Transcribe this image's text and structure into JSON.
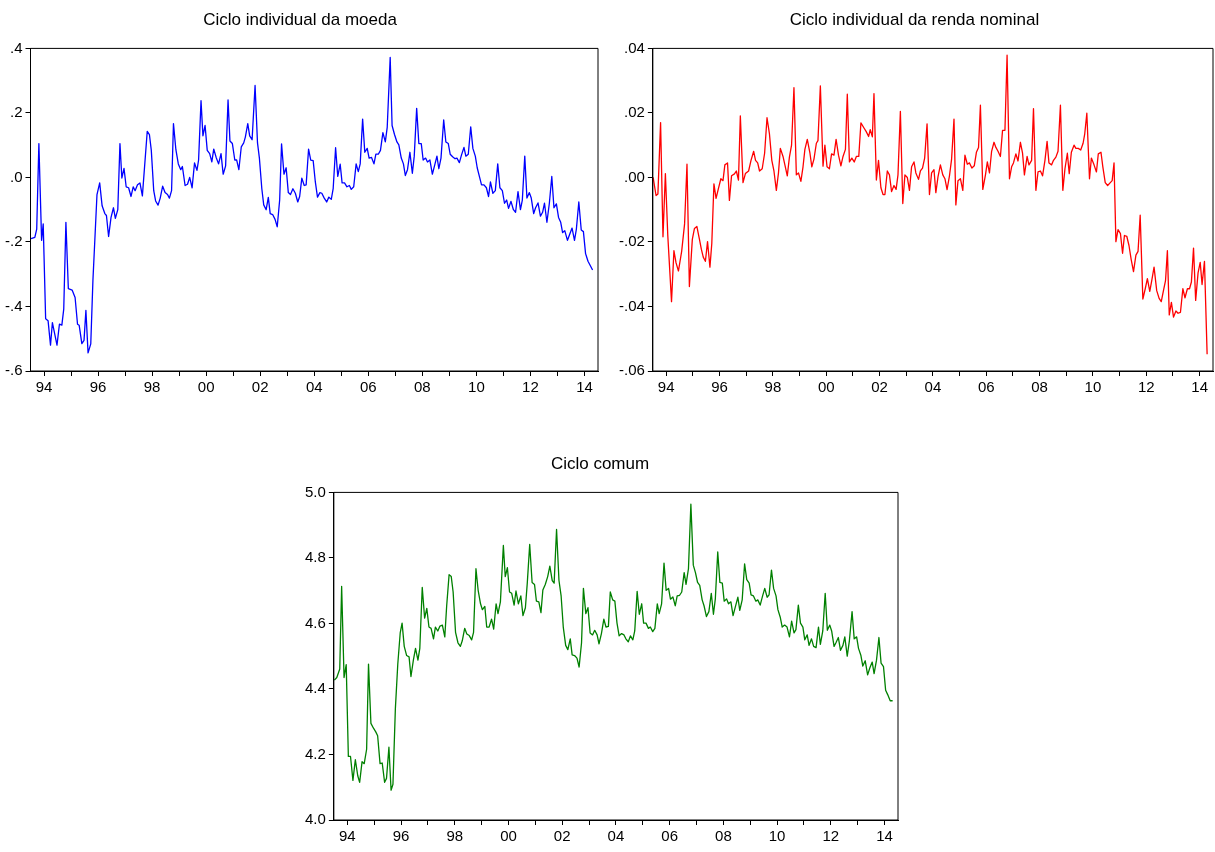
{
  "chart_data": [
    {
      "type": "line",
      "title": "Ciclo individual da moeda",
      "x": [
        1993.52,
        1993.66,
        1993.73,
        1993.81,
        1993.91,
        1993.97,
        1994.06,
        1994.15,
        1994.24,
        1994.31,
        1994.48,
        1994.57,
        1994.66,
        1994.73,
        1994.81,
        1994.9,
        1995.04,
        1995.15,
        1995.24,
        1995.3,
        1995.4,
        1995.48,
        1995.55,
        1995.63,
        1995.73,
        1995.81,
        1995.96,
        1996.06,
        1996.15,
        1996.25,
        1996.31,
        1996.39,
        1996.48,
        1996.57,
        1996.64,
        1996.73,
        1996.81,
        1996.88,
        1996.96,
        1997.04,
        1997.13,
        1997.22,
        1997.3,
        1997.37,
        1997.46,
        1997.55,
        1997.64,
        1997.82,
        1997.9,
        1997.97,
        1998.06,
        1998.13,
        1998.22,
        1998.3,
        1998.39,
        1998.48,
        1998.57,
        1998.64,
        1998.72,
        1998.79,
        1998.88,
        1998.97,
        1999.06,
        1999.12,
        1999.22,
        1999.31,
        1999.39,
        1999.48,
        1999.57,
        1999.66,
        1999.72,
        1999.81,
        1999.88,
        1999.96,
        2000.04,
        2000.13,
        2000.21,
        2000.28,
        2000.37,
        2000.46,
        2000.55,
        2000.63,
        2000.72,
        2000.81,
        2000.88,
        2000.97,
        2001.06,
        2001.13,
        2001.21,
        2001.3,
        2001.39,
        2001.45,
        2001.54,
        2001.61,
        2001.7,
        2001.81,
        2001.9,
        2001.97,
        2002.06,
        2002.13,
        2002.22,
        2002.3,
        2002.37,
        2002.46,
        2002.55,
        2002.63,
        2002.72,
        2002.79,
        2002.88,
        2002.96,
        2003.04,
        2003.12,
        2003.21,
        2003.3,
        2003.39,
        2003.46,
        2003.54,
        2003.63,
        2003.7,
        2003.79,
        2003.87,
        2003.96,
        2004.04,
        2004.12,
        2004.21,
        2004.28,
        2004.37,
        2004.46,
        2004.54,
        2004.63,
        2004.7,
        2004.79,
        2004.87,
        2004.96,
        2005.03,
        2005.12,
        2005.21,
        2005.3,
        2005.37,
        2005.46,
        2005.55,
        2005.63,
        2005.7,
        2005.79,
        2005.87,
        2005.96,
        2006.03,
        2006.12,
        2006.21,
        2006.28,
        2006.37,
        2006.45,
        2006.54,
        2006.63,
        2006.7,
        2006.81,
        2006.88,
        2006.97,
        2007.06,
        2007.13,
        2007.22,
        2007.3,
        2007.37,
        2007.45,
        2007.54,
        2007.63,
        2007.7,
        2007.79,
        2007.87,
        2007.96,
        2008.03,
        2008.12,
        2008.19,
        2008.28,
        2008.37,
        2008.45,
        2008.54,
        2008.61,
        2008.69,
        2008.79,
        2008.87,
        2008.96,
        2009.03,
        2009.12,
        2009.21,
        2009.28,
        2009.37,
        2009.45,
        2009.54,
        2009.61,
        2009.7,
        2009.79,
        2009.87,
        2009.96,
        2010.03,
        2010.12,
        2010.19,
        2010.28,
        2010.37,
        2010.45,
        2010.52,
        2010.61,
        2010.7,
        2010.79,
        2010.87,
        2010.96,
        2011.04,
        2011.12,
        2011.19,
        2011.28,
        2011.37,
        2011.45,
        2011.54,
        2011.63,
        2011.7,
        2011.79,
        2011.87,
        2011.96,
        2012.03,
        2012.12,
        2012.19,
        2012.28,
        2012.37,
        2012.45,
        2012.52,
        2012.61,
        2012.7,
        2012.79,
        2012.87,
        2012.96,
        2013.04,
        2013.12,
        2013.19,
        2013.27,
        2013.37,
        2013.45,
        2013.54,
        2013.63,
        2013.7,
        2013.79,
        2013.88,
        2013.96,
        2014.04,
        2014.13,
        2014.3
      ],
      "series": [
        {
          "color": "#0000ff",
          "values": [
            -0.19,
            -0.186,
            -0.16,
            0.105,
            -0.195,
            -0.144,
            -0.438,
            -0.444,
            -0.52,
            -0.45,
            -0.52,
            -0.455,
            -0.458,
            -0.408,
            -0.139,
            -0.345,
            -0.349,
            -0.372,
            -0.455,
            -0.458,
            -0.515,
            -0.505,
            -0.412,
            -0.544,
            -0.516,
            -0.319,
            -0.053,
            -0.017,
            -0.088,
            -0.112,
            -0.118,
            -0.183,
            -0.124,
            -0.094,
            -0.127,
            -0.1,
            0.105,
            -0.002,
            0.028,
            -0.029,
            -0.032,
            -0.059,
            -0.029,
            -0.041,
            -0.023,
            -0.017,
            -0.057,
            0.143,
            0.133,
            0.084,
            -0.041,
            -0.073,
            -0.086,
            -0.064,
            -0.027,
            -0.047,
            -0.053,
            -0.064,
            -0.041,
            0.167,
            0.086,
            0.042,
            0.024,
            0.034,
            -0.025,
            -0.021,
            0.0,
            -0.032,
            0.045,
            0.022,
            0.054,
            0.238,
            0.129,
            0.161,
            0.084,
            0.074,
            0.048,
            0.088,
            0.062,
            0.042,
            0.074,
            0.01,
            0.036,
            0.24,
            0.113,
            0.105,
            0.054,
            0.054,
            0.024,
            0.095,
            0.107,
            0.125,
            0.167,
            0.129,
            0.117,
            0.285,
            0.107,
            0.06,
            -0.035,
            -0.085,
            -0.1,
            -0.062,
            -0.112,
            -0.115,
            -0.13,
            -0.153,
            -0.07,
            0.104,
            0.01,
            0.03,
            -0.047,
            -0.053,
            -0.035,
            -0.049,
            -0.076,
            -0.059,
            -0.002,
            -0.025,
            -0.023,
            0.088,
            0.054,
            0.052,
            -0.014,
            -0.061,
            -0.047,
            -0.049,
            -0.064,
            -0.076,
            -0.061,
            -0.068,
            -0.035,
            0.092,
            0.003,
            0.041,
            -0.017,
            -0.017,
            -0.029,
            -0.025,
            -0.037,
            -0.029,
            0.042,
            0.018,
            0.042,
            0.181,
            0.078,
            0.09,
            0.06,
            0.062,
            0.042,
            0.072,
            0.072,
            0.084,
            0.139,
            0.11,
            0.155,
            0.372,
            0.161,
            0.133,
            0.11,
            0.101,
            0.06,
            0.042,
            0.006,
            0.024,
            0.078,
            0.013,
            0.066,
            0.214,
            0.105,
            0.105,
            0.054,
            0.06,
            0.048,
            0.054,
            0.01,
            0.036,
            0.066,
            0.027,
            0.06,
            0.178,
            0.11,
            0.105,
            0.072,
            0.064,
            0.058,
            0.06,
            0.046,
            0.07,
            0.093,
            0.066,
            0.072,
            0.157,
            0.09,
            0.066,
            0.03,
            0.0,
            -0.023,
            -0.023,
            -0.032,
            -0.059,
            -0.014,
            -0.049,
            -0.041,
            0.042,
            -0.032,
            -0.041,
            -0.08,
            -0.07,
            -0.096,
            -0.074,
            -0.1,
            -0.108,
            -0.044,
            -0.1,
            -0.07,
            0.066,
            -0.064,
            -0.047,
            -0.064,
            -0.112,
            -0.094,
            -0.079,
            -0.12,
            -0.108,
            -0.08,
            -0.139,
            -0.08,
            0.003,
            -0.094,
            -0.082,
            -0.124,
            -0.139,
            -0.171,
            -0.165,
            -0.195,
            -0.177,
            -0.157,
            -0.195,
            -0.16,
            -0.076,
            -0.163,
            -0.168,
            -0.236,
            -0.26,
            -0.287
          ]
        }
      ],
      "xlim": [
        1993.5,
        2014.5
      ],
      "xticks": [
        {
          "value": 1994,
          "label": "94"
        },
        {
          "value": 1995,
          "label": null
        },
        {
          "value": 1996,
          "label": "96"
        },
        {
          "value": 1997,
          "label": null
        },
        {
          "value": 1998,
          "label": "98"
        },
        {
          "value": 1999,
          "label": null
        },
        {
          "value": 2000,
          "label": "00"
        },
        {
          "value": 2001,
          "label": null
        },
        {
          "value": 2002,
          "label": "02"
        },
        {
          "value": 2003,
          "label": null
        },
        {
          "value": 2004,
          "label": "04"
        },
        {
          "value": 2005,
          "label": null
        },
        {
          "value": 2006,
          "label": "06"
        },
        {
          "value": 2007,
          "label": null
        },
        {
          "value": 2008,
          "label": "08"
        },
        {
          "value": 2009,
          "label": null
        },
        {
          "value": 2010,
          "label": "10"
        },
        {
          "value": 2011,
          "label": null
        },
        {
          "value": 2012,
          "label": "12"
        },
        {
          "value": 2013,
          "label": null
        },
        {
          "value": 2014,
          "label": "14"
        }
      ],
      "ylim": [
        -0.6,
        0.4
      ],
      "yticks": [
        {
          "value": -0.6,
          "label": "-.6"
        },
        {
          "value": -0.4,
          "label": "-.4"
        },
        {
          "value": -0.2,
          "label": "-.2"
        },
        {
          "value": 0,
          "label": ".0"
        },
        {
          "value": 0.2,
          "label": ".2"
        },
        {
          "value": 0.4,
          "label": ".4"
        }
      ]
    },
    {
      "type": "line",
      "title": "Ciclo individual da renda nominal",
      "x": [
        1993.51,
        1993.62,
        1993.69,
        1993.79,
        1993.88,
        1993.97,
        1994.06,
        1994.2,
        1994.29,
        1994.37,
        1994.46,
        1994.58,
        1994.69,
        1994.78,
        1994.87,
        1994.98,
        1995.06,
        1995.15,
        1995.24,
        1995.32,
        1995.39,
        1995.47,
        1995.55,
        1995.64,
        1995.71,
        1995.79,
        1995.87,
        1995.96,
        1996.05,
        1996.13,
        1996.2,
        1996.3,
        1996.37,
        1996.45,
        1996.56,
        1996.63,
        1996.71,
        1996.78,
        1996.88,
        1996.97,
        1997.09,
        1997.18,
        1997.28,
        1997.35,
        1997.43,
        1997.5,
        1997.6,
        1997.69,
        1997.78,
        1997.87,
        1997.96,
        1998.04,
        1998.13,
        1998.21,
        1998.28,
        1998.38,
        1998.45,
        1998.54,
        1998.62,
        1998.7,
        1998.79,
        1998.88,
        1998.96,
        1999.05,
        1999.13,
        1999.2,
        1999.29,
        1999.39,
        1999.46,
        1999.54,
        1999.63,
        1999.69,
        1999.78,
        1999.88,
        1999.95,
        2000.03,
        2000.12,
        2000.2,
        2000.29,
        2000.37,
        2000.46,
        2000.55,
        2000.63,
        2000.72,
        2000.79,
        2000.87,
        2000.96,
        2001.05,
        2001.13,
        2001.22,
        2001.3,
        2001.41,
        2001.5,
        2001.59,
        2001.65,
        2001.73,
        2001.79,
        2001.88,
        2001.96,
        2002.05,
        2002.13,
        2002.2,
        2002.29,
        2002.37,
        2002.45,
        2002.54,
        2002.62,
        2002.69,
        2002.78,
        2002.87,
        2002.95,
        2003.04,
        2003.12,
        2003.2,
        2003.29,
        2003.36,
        2003.46,
        2003.53,
        2003.61,
        2003.69,
        2003.78,
        2003.87,
        2003.95,
        2004.04,
        2004.11,
        2004.19,
        2004.28,
        2004.37,
        2004.45,
        2004.53,
        2004.62,
        2004.7,
        2004.79,
        2004.86,
        2004.94,
        2005.03,
        2005.12,
        2005.2,
        2005.29,
        2005.37,
        2005.46,
        2005.55,
        2005.63,
        2005.71,
        2005.78,
        2005.87,
        2005.97,
        2006.04,
        2006.12,
        2006.2,
        2006.29,
        2006.36,
        2006.44,
        2006.53,
        2006.61,
        2006.7,
        2006.78,
        2006.87,
        2006.95,
        2007.02,
        2007.11,
        2007.19,
        2007.28,
        2007.36,
        2007.43,
        2007.53,
        2007.6,
        2007.7,
        2007.77,
        2007.86,
        2007.94,
        2008.03,
        2008.11,
        2008.2,
        2008.28,
        2008.35,
        2008.45,
        2008.52,
        2008.61,
        2008.69,
        2008.78,
        2008.87,
        2008.95,
        2009.04,
        2009.11,
        2009.19,
        2009.29,
        2009.36,
        2009.45,
        2009.54,
        2009.63,
        2009.69,
        2009.77,
        2009.87,
        2009.94,
        2010.04,
        2010.13,
        2010.2,
        2010.3,
        2010.37,
        2010.46,
        2010.55,
        2010.65,
        2010.72,
        2010.79,
        2010.86,
        2010.94,
        2011.03,
        2011.11,
        2011.18,
        2011.27,
        2011.35,
        2011.43,
        2011.52,
        2011.61,
        2011.69,
        2011.77,
        2011.87,
        2011.96,
        2012.04,
        2012.13,
        2012.21,
        2012.29,
        2012.39,
        2012.48,
        2012.56,
        2012.65,
        2012.72,
        2012.79,
        2012.86,
        2012.94,
        2013.02,
        2013.11,
        2013.19,
        2013.28,
        2013.37,
        2013.45,
        2013.54,
        2013.62,
        2013.69,
        2013.77,
        2013.85,
        2013.94,
        2014.02,
        2014.09,
        2014.18,
        2014.28
      ],
      "series": [
        {
          "color": "#ff0000",
          "values": [
            0.0,
            -0.0056,
            -0.0051,
            0.017,
            -0.0184,
            0.0012,
            -0.018,
            -0.0385,
            -0.0227,
            -0.0265,
            -0.029,
            -0.0229,
            -0.0144,
            0.0041,
            -0.0338,
            -0.0192,
            -0.0158,
            -0.0152,
            -0.0189,
            -0.0223,
            -0.0247,
            -0.026,
            -0.0199,
            -0.0278,
            -0.0205,
            -0.002,
            -0.0065,
            -0.0034,
            -0.0004,
            -0.001,
            0.0039,
            0.0045,
            -0.0071,
            0.0005,
            0.0011,
            0.002,
            -0.0008,
            0.0191,
            -0.0016,
            0.0012,
            0.002,
            0.0053,
            0.0081,
            0.0053,
            0.0045,
            0.002,
            0.0027,
            0.0075,
            0.0185,
            0.0136,
            0.0053,
            0.002,
            -0.004,
            0.0014,
            0.009,
            0.0065,
            0.0039,
            0.0005,
            0.0063,
            0.01,
            0.0278,
            0.0008,
            0.0014,
            -0.0012,
            0.0033,
            0.0087,
            0.0118,
            0.0075,
            0.0033,
            0.0057,
            0.0106,
            0.0114,
            0.0284,
            0.0035,
            0.01,
            0.0033,
            0.0027,
            0.0073,
            0.0069,
            0.0118,
            0.0069,
            0.0036,
            0.0065,
            0.0087,
            0.0258,
            0.0048,
            0.006,
            0.0048,
            0.0065,
            0.0065,
            0.0169,
            0.0154,
            0.0142,
            0.0127,
            0.0148,
            0.0126,
            0.026,
            -0.0008,
            0.0053,
            -0.0032,
            -0.0053,
            -0.0053,
            0.002,
            0.0008,
            -0.0044,
            -0.0025,
            -0.0037,
            0.0008,
            0.0205,
            -0.0081,
            0.0008,
            0.0,
            -0.004,
            0.0033,
            0.0048,
            0.0014,
            -0.0006,
            0.002,
            0.0029,
            0.006,
            0.0166,
            -0.0053,
            0.0014,
            0.0024,
            -0.0047,
            0.0002,
            0.0039,
            0.0008,
            -0.0004,
            -0.0038,
            0.0005,
            0.0057,
            0.0181,
            -0.0085,
            -0.001,
            -0.0004,
            -0.004,
            0.0069,
            0.0041,
            0.0045,
            0.0029,
            0.0036,
            0.0078,
            0.0093,
            0.0224,
            -0.0037,
            0.0008,
            0.0048,
            0.0014,
            0.0081,
            0.0109,
            0.0093,
            0.0081,
            0.0065,
            0.0146,
            0.0146,
            0.0379,
            -0.0004,
            0.0033,
            0.0045,
            0.0073,
            0.0051,
            0.0109,
            0.0075,
            0.0008,
            0.0065,
            0.0039,
            0.0053,
            0.0213,
            -0.004,
            0.0017,
            0.002,
            0.0005,
            0.0053,
            0.0112,
            0.0045,
            0.0039,
            0.0053,
            0.0063,
            0.0081,
            0.0224,
            -0.004,
            0.0027,
            0.0075,
            0.0012,
            0.0078,
            0.01,
            0.009,
            0.009,
            0.0085,
            0.0106,
            0.0134,
            0.0199,
            -0.0004,
            0.006,
            0.0039,
            0.0017,
            0.0073,
            0.0078,
            0.0033,
            -0.0016,
            -0.0025,
            -0.0016,
            -0.001,
            0.0045,
            -0.0199,
            -0.0162,
            -0.0174,
            -0.0235,
            -0.018,
            -0.0183,
            -0.0211,
            -0.0253,
            -0.0292,
            -0.0241,
            -0.0229,
            -0.0117,
            -0.0377,
            -0.0345,
            -0.0314,
            -0.0353,
            -0.0317,
            -0.0278,
            -0.0351,
            -0.0375,
            -0.0385,
            -0.0348,
            -0.032,
            -0.0227,
            -0.0426,
            -0.0387,
            -0.0433,
            -0.0414,
            -0.0421,
            -0.0418,
            -0.0345,
            -0.0373,
            -0.0345,
            -0.0345,
            -0.0324,
            -0.0219,
            -0.0381,
            -0.0296,
            -0.0263,
            -0.0332,
            -0.026,
            -0.0548
          ]
        }
      ],
      "xlim": [
        1993.5,
        2014.5
      ],
      "xticks": [
        {
          "value": 1994,
          "label": "94"
        },
        {
          "value": 1995,
          "label": null
        },
        {
          "value": 1996,
          "label": "96"
        },
        {
          "value": 1997,
          "label": null
        },
        {
          "value": 1998,
          "label": "98"
        },
        {
          "value": 1999,
          "label": null
        },
        {
          "value": 2000,
          "label": "00"
        },
        {
          "value": 2001,
          "label": null
        },
        {
          "value": 2002,
          "label": "02"
        },
        {
          "value": 2003,
          "label": null
        },
        {
          "value": 2004,
          "label": "04"
        },
        {
          "value": 2005,
          "label": null
        },
        {
          "value": 2006,
          "label": "06"
        },
        {
          "value": 2007,
          "label": null
        },
        {
          "value": 2008,
          "label": "08"
        },
        {
          "value": 2009,
          "label": null
        },
        {
          "value": 2010,
          "label": "10"
        },
        {
          "value": 2011,
          "label": null
        },
        {
          "value": 2012,
          "label": "12"
        },
        {
          "value": 2013,
          "label": null
        },
        {
          "value": 2014,
          "label": "14"
        }
      ],
      "ylim": [
        -0.06,
        0.04
      ],
      "yticks": [
        {
          "value": -0.06,
          "label": "-.06"
        },
        {
          "value": -0.04,
          "label": "-.04"
        },
        {
          "value": -0.02,
          "label": "-.02"
        },
        {
          "value": 0,
          "label": ".00"
        },
        {
          "value": 0.02,
          "label": ".02"
        },
        {
          "value": 0.04,
          "label": ".04"
        }
      ]
    },
    {
      "type": "line",
      "title": "Ciclo comum",
      "x": [
        1993.52,
        1993.61,
        1993.72,
        1993.79,
        1993.88,
        1993.96,
        1994.04,
        1994.12,
        1994.21,
        1994.3,
        1994.39,
        1994.46,
        1994.55,
        1994.63,
        1994.72,
        1994.79,
        1994.88,
        1994.97,
        1995.06,
        1995.13,
        1995.22,
        1995.3,
        1995.39,
        1995.46,
        1995.55,
        1995.63,
        1995.7,
        1995.79,
        1995.88,
        1995.97,
        1996.04,
        1996.12,
        1996.21,
        1996.3,
        1996.37,
        1996.46,
        1996.54,
        1996.63,
        1996.7,
        1996.79,
        1996.88,
        1996.96,
        1997.04,
        1997.12,
        1997.21,
        1997.28,
        1997.37,
        1997.45,
        1997.54,
        1997.63,
        1997.7,
        1997.79,
        1997.87,
        1997.94,
        1998.03,
        1998.12,
        1998.21,
        1998.28,
        1998.37,
        1998.45,
        1998.54,
        1998.63,
        1998.7,
        1998.79,
        1998.87,
        1998.96,
        1999.03,
        1999.12,
        1999.19,
        1999.28,
        1999.37,
        1999.45,
        1999.54,
        1999.61,
        1999.7,
        1999.81,
        1999.88,
        1999.96,
        2000.04,
        2000.12,
        2000.21,
        2000.28,
        2000.37,
        2000.46,
        2000.54,
        2000.63,
        2000.7,
        2000.79,
        2000.88,
        2000.97,
        2001.04,
        2001.13,
        2001.21,
        2001.28,
        2001.37,
        2001.46,
        2001.54,
        2001.63,
        2001.7,
        2001.79,
        2001.88,
        2001.96,
        2002.04,
        2002.13,
        2002.21,
        2002.3,
        2002.37,
        2002.46,
        2002.55,
        2002.63,
        2002.72,
        2002.79,
        2002.88,
        2002.96,
        2003.04,
        2003.13,
        2003.21,
        2003.3,
        2003.37,
        2003.46,
        2003.55,
        2003.63,
        2003.72,
        2003.79,
        2003.88,
        2003.96,
        2004.04,
        2004.12,
        2004.21,
        2004.3,
        2004.37,
        2004.46,
        2004.54,
        2004.63,
        2004.7,
        2004.79,
        2004.87,
        2004.96,
        2005.03,
        2005.12,
        2005.21,
        2005.28,
        2005.37,
        2005.45,
        2005.54,
        2005.61,
        2005.7,
        2005.79,
        2005.87,
        2005.96,
        2006.03,
        2006.12,
        2006.21,
        2006.28,
        2006.37,
        2006.45,
        2006.54,
        2006.61,
        2006.7,
        2006.79,
        2006.88,
        2006.96,
        2007.04,
        2007.12,
        2007.21,
        2007.28,
        2007.37,
        2007.46,
        2007.55,
        2007.63,
        2007.7,
        2007.79,
        2007.87,
        2007.96,
        2008.03,
        2008.12,
        2008.19,
        2008.28,
        2008.36,
        2008.45,
        2008.54,
        2008.61,
        2008.7,
        2008.79,
        2008.87,
        2008.96,
        2009.03,
        2009.12,
        2009.21,
        2009.28,
        2009.37,
        2009.46,
        2009.54,
        2009.63,
        2009.7,
        2009.79,
        2009.87,
        2009.96,
        2010.03,
        2010.12,
        2010.19,
        2010.28,
        2010.37,
        2010.46,
        2010.54,
        2010.63,
        2010.7,
        2010.79,
        2010.87,
        2010.96,
        2011.03,
        2011.12,
        2011.19,
        2011.28,
        2011.36,
        2011.45,
        2011.54,
        2011.61,
        2011.7,
        2011.79,
        2011.87,
        2011.96,
        2012.03,
        2012.12,
        2012.19,
        2012.28,
        2012.36,
        2012.45,
        2012.52,
        2012.61,
        2012.69,
        2012.79,
        2012.87,
        2012.96,
        2013.03,
        2013.12,
        2013.19,
        2013.28,
        2013.37,
        2013.45,
        2013.54,
        2013.61,
        2013.7,
        2013.79,
        2013.87,
        2013.96,
        2014.04,
        2014.12,
        2014.21,
        2014.3
      ],
      "series": [
        {
          "color": "#008000",
          "values": [
            4.427,
            4.435,
            4.461,
            4.713,
            4.435,
            4.474,
            4.194,
            4.194,
            4.121,
            4.184,
            4.135,
            4.115,
            4.178,
            4.172,
            4.216,
            4.476,
            4.295,
            4.281,
            4.269,
            4.257,
            4.172,
            4.174,
            4.115,
            4.127,
            4.222,
            4.091,
            4.109,
            4.34,
            4.476,
            4.571,
            4.601,
            4.53,
            4.502,
            4.498,
            4.438,
            4.488,
            4.524,
            4.488,
            4.524,
            4.71,
            4.616,
            4.646,
            4.589,
            4.585,
            4.553,
            4.589,
            4.577,
            4.592,
            4.595,
            4.559,
            4.654,
            4.749,
            4.743,
            4.696,
            4.573,
            4.541,
            4.53,
            4.547,
            4.585,
            4.568,
            4.563,
            4.55,
            4.573,
            4.767,
            4.702,
            4.66,
            4.642,
            4.652,
            4.589,
            4.589,
            4.613,
            4.583,
            4.66,
            4.63,
            4.666,
            4.838,
            4.743,
            4.77,
            4.696,
            4.692,
            4.656,
            4.699,
            4.66,
            4.684,
            4.624,
            4.648,
            4.723,
            4.841,
            4.725,
            4.719,
            4.668,
            4.666,
            4.633,
            4.702,
            4.719,
            4.743,
            4.775,
            4.731,
            4.723,
            4.887,
            4.731,
            4.684,
            4.589,
            4.533,
            4.52,
            4.553,
            4.504,
            4.502,
            4.494,
            4.467,
            4.541,
            4.707,
            4.63,
            4.648,
            4.571,
            4.565,
            4.579,
            4.565,
            4.538,
            4.569,
            4.613,
            4.589,
            4.591,
            4.696,
            4.672,
            4.668,
            4.601,
            4.562,
            4.569,
            4.565,
            4.553,
            4.544,
            4.562,
            4.55,
            4.577,
            4.698,
            4.628,
            4.66,
            4.601,
            4.601,
            4.585,
            4.589,
            4.575,
            4.585,
            4.66,
            4.63,
            4.66,
            4.784,
            4.701,
            4.707,
            4.674,
            4.681,
            4.654,
            4.684,
            4.686,
            4.696,
            4.755,
            4.719,
            4.767,
            4.964,
            4.778,
            4.755,
            4.725,
            4.716,
            4.672,
            4.654,
            4.621,
            4.636,
            4.692,
            4.628,
            4.675,
            4.818,
            4.725,
            4.723,
            4.668,
            4.675,
            4.66,
            4.666,
            4.624,
            4.652,
            4.68,
            4.64,
            4.672,
            4.782,
            4.734,
            4.723,
            4.687,
            4.684,
            4.668,
            4.672,
            4.656,
            4.684,
            4.707,
            4.68,
            4.687,
            4.763,
            4.707,
            4.684,
            4.642,
            4.618,
            4.589,
            4.595,
            4.589,
            4.559,
            4.607,
            4.571,
            4.581,
            4.656,
            4.601,
            4.589,
            4.55,
            4.565,
            4.533,
            4.553,
            4.53,
            4.526,
            4.589,
            4.536,
            4.577,
            4.692,
            4.579,
            4.595,
            4.577,
            4.53,
            4.541,
            4.557,
            4.518,
            4.533,
            4.559,
            4.5,
            4.547,
            4.636,
            4.553,
            4.559,
            4.524,
            4.502,
            4.47,
            4.486,
            4.443,
            4.464,
            4.482,
            4.447,
            4.488,
            4.557,
            4.479,
            4.468,
            4.396,
            4.382,
            4.364,
            4.364
          ]
        }
      ],
      "xlim": [
        1993.5,
        2014.5
      ],
      "xticks": [
        {
          "value": 1994,
          "label": "94"
        },
        {
          "value": 1995,
          "label": null
        },
        {
          "value": 1996,
          "label": "96"
        },
        {
          "value": 1997,
          "label": null
        },
        {
          "value": 1998,
          "label": "98"
        },
        {
          "value": 1999,
          "label": null
        },
        {
          "value": 2000,
          "label": "00"
        },
        {
          "value": 2001,
          "label": null
        },
        {
          "value": 2002,
          "label": "02"
        },
        {
          "value": 2003,
          "label": null
        },
        {
          "value": 2004,
          "label": "04"
        },
        {
          "value": 2005,
          "label": null
        },
        {
          "value": 2006,
          "label": "06"
        },
        {
          "value": 2007,
          "label": null
        },
        {
          "value": 2008,
          "label": "08"
        },
        {
          "value": 2009,
          "label": null
        },
        {
          "value": 2010,
          "label": "10"
        },
        {
          "value": 2011,
          "label": null
        },
        {
          "value": 2012,
          "label": "12"
        },
        {
          "value": 2013,
          "label": null
        },
        {
          "value": 2014,
          "label": "14"
        }
      ],
      "ylim": [
        4.0,
        5.0
      ],
      "yticks": [
        {
          "value": 4.0,
          "label": "4.0"
        },
        {
          "value": 4.2,
          "label": "4.2"
        },
        {
          "value": 4.4,
          "label": "4.4"
        },
        {
          "value": 4.6,
          "label": "4.6"
        },
        {
          "value": 4.8,
          "label": "4.8"
        },
        {
          "value": 5.0,
          "label": "5.0"
        }
      ]
    }
  ]
}
